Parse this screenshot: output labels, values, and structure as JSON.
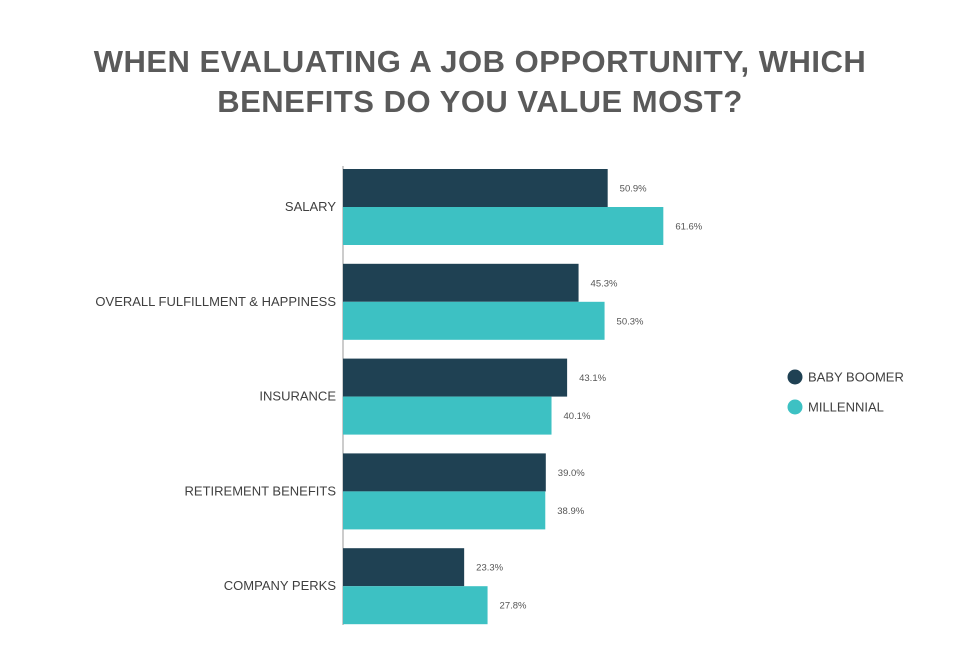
{
  "chart_data": {
    "type": "bar",
    "orientation": "horizontal",
    "title_lines": [
      "WHEN EVALUATING A JOB OPPORTUNITY, WHICH",
      "BENEFITS DO YOU VALUE MOST?"
    ],
    "categories": [
      "SALARY",
      "OVERALL FULFILLMENT & HAPPINESS",
      "INSURANCE",
      "RETIREMENT BENEFITS",
      "COMPANY PERKS"
    ],
    "series": [
      {
        "name": "BABY BOOMER",
        "color": "#1f4153",
        "values": [
          50.9,
          45.3,
          43.1,
          39.0,
          23.3
        ],
        "labels": [
          "50.9%",
          "45.3%",
          "43.1%",
          "39.0%",
          "23.3%"
        ]
      },
      {
        "name": "MILLENNIAL",
        "color": "#3dc1c3",
        "values": [
          61.6,
          50.3,
          40.1,
          38.9,
          27.8
        ],
        "labels": [
          "61.6%",
          "50.3%",
          "40.1%",
          "38.9%",
          "27.8%"
        ]
      }
    ],
    "xlim": [
      0,
      70
    ],
    "grid": false,
    "legend_position": "right"
  }
}
